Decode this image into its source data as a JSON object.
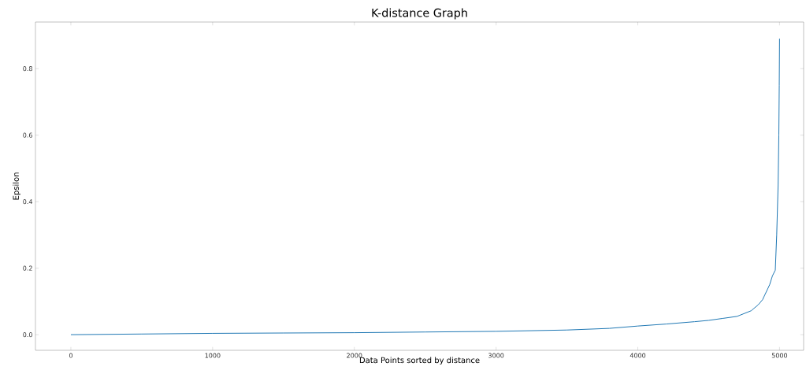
{
  "chart_data": {
    "type": "line",
    "title": "K-distance Graph",
    "xlabel": "Data Points sorted by distance",
    "ylabel": "Epsilon",
    "x": [
      0,
      500,
      1000,
      1500,
      2000,
      2500,
      3000,
      3500,
      3800,
      4000,
      4200,
      4400,
      4500,
      4600,
      4700,
      4800,
      4850,
      4880,
      4900,
      4930,
      4950,
      4970,
      4980,
      4990,
      4995,
      4998,
      5000
    ],
    "series": [
      {
        "color": "#1f77b4",
        "values": [
          0,
          0.002,
          0.004,
          0.005,
          0.006,
          0.008,
          0.01,
          0.014,
          0.019,
          0.026,
          0.032,
          0.039,
          0.043,
          0.049,
          0.055,
          0.072,
          0.09,
          0.105,
          0.123,
          0.15,
          0.177,
          0.194,
          0.3,
          0.45,
          0.6,
          0.75,
          0.89
        ]
      }
    ],
    "xlim": [
      -250,
      5170
    ],
    "ylim": [
      -0.047,
      0.94
    ],
    "xticks": [
      0,
      1000,
      2000,
      3000,
      4000,
      5000
    ],
    "yticks": [
      {
        "value": 0,
        "label": "0.0"
      },
      0.2,
      0.4,
      0.6,
      0.8
    ],
    "grid": false
  }
}
